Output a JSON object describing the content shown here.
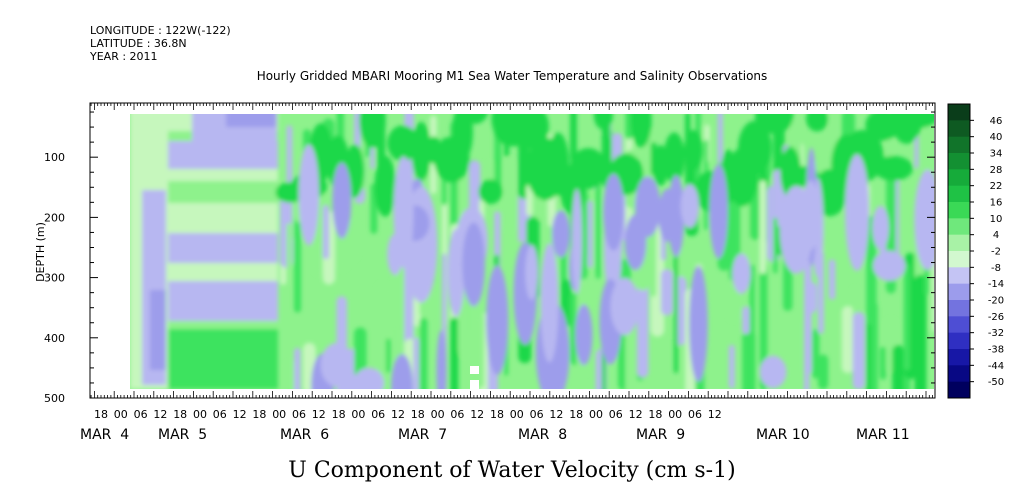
{
  "header": {
    "lines": [
      "LONGITUDE : 122W(-122)",
      "LATITUDE : 36.8N",
      "YEAR : 2011"
    ],
    "title": "Hourly Gridded MBARI Mooring M1 Sea Water Temperature and Salinity Observations"
  },
  "variable_title": "U Component of Water Velocity (cm s-1)",
  "chart_data": {
    "type": "heatmap",
    "title": "Hourly Gridded MBARI Mooring M1 Sea Water Temperature and Salinity Observations",
    "ylabel": "DEPTH (m)",
    "xlabel": "",
    "y_reversed": true,
    "ylim": [
      500,
      10
    ],
    "y_ticks": [
      "100",
      "200",
      "300",
      "400",
      "500"
    ],
    "x_hour_ticks": [
      "18",
      "00",
      "06",
      "12",
      "18",
      "00",
      "06",
      "12",
      "18",
      "00",
      "06",
      "12",
      "18",
      "00",
      "06",
      "12",
      "18",
      "00",
      "06",
      "12",
      "18",
      "00",
      "06",
      "12",
      "18",
      "00",
      "06",
      "12",
      "18",
      "00",
      "06",
      "12"
    ],
    "x_date_labels": [
      "MAR  4",
      "MAR  5",
      "MAR  6",
      "MAR  7",
      "MAR  8",
      "MAR  9",
      "MAR 10",
      "MAR 11"
    ],
    "data_extent": {
      "time_start": "Mar 4 00:00",
      "time_end": "Mar 11 18:00",
      "depth_top": 20,
      "depth_bottom": 485
    },
    "colorbar": {
      "labels": [
        "46",
        "40",
        "34",
        "28",
        "22",
        "16",
        "10",
        "4",
        "-2",
        "-8",
        "-14",
        "-20",
        "-26",
        "-32",
        "-38",
        "-44",
        "-50"
      ],
      "colors": [
        "#0a3d1a",
        "#0e5a22",
        "#11742a",
        "#139032",
        "#16ab3a",
        "#1fc245",
        "#3ad956",
        "#6fe87c",
        "#a8f2a6",
        "#d2f8cf",
        "#c4c4f4",
        "#9c9cec",
        "#7373df",
        "#4e4ed4",
        "#2f2fc2",
        "#1717a6",
        "#080884",
        "#00005e"
      ]
    },
    "field_colors": {
      "green_bright": "#1fd84a",
      "green_mid": "#3de35f",
      "green_light": "#8ef28c",
      "green_pale": "#c6f7bd",
      "lavender": "#b7b7f1",
      "blue_light": "#9d9deb"
    }
  }
}
